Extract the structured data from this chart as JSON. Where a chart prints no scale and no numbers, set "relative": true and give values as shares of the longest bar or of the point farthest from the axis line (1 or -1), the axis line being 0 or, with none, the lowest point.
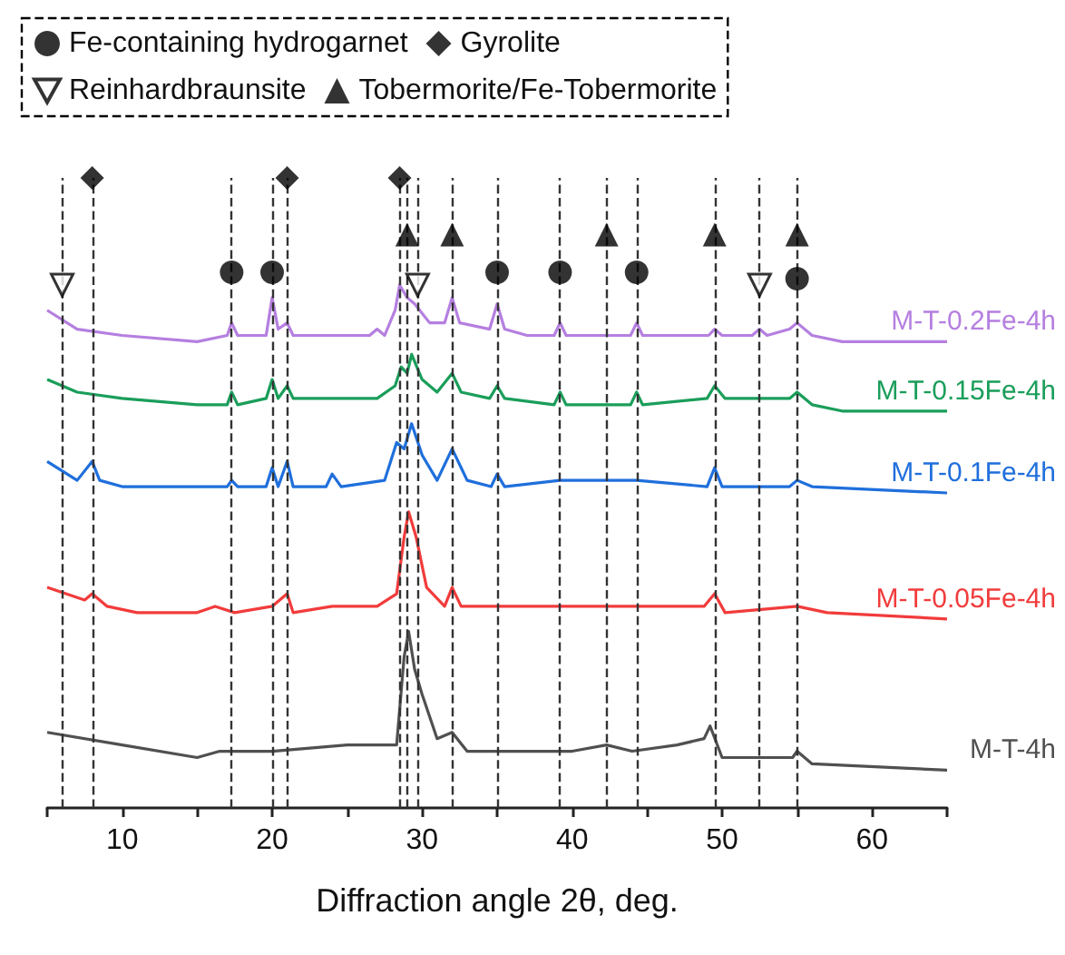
{
  "chart_data": {
    "type": "line",
    "relative": true,
    "xlabel": "Diffraction angle 2θ, deg.",
    "xlim": [
      5,
      65
    ],
    "xticks": [
      {
        "value": 5,
        "label": null
      },
      10,
      {
        "value": 15,
        "label": null
      },
      20,
      {
        "value": 25,
        "label": null
      },
      30,
      {
        "value": 35,
        "label": null
      },
      40,
      {
        "value": 45,
        "label": null
      },
      50,
      {
        "value": 55,
        "label": null
      },
      60,
      {
        "value": 65,
        "label": null
      }
    ],
    "grid": false,
    "legend": "top left",
    "line_style": "solid",
    "series": [
      {
        "name": "M-T-0.2Fe-4h",
        "color": "#b57fe0",
        "x": [
          5,
          7,
          10,
          15,
          17,
          17.3,
          17.7,
          19.6,
          20,
          20.4,
          21,
          21.4,
          24,
          26.5,
          27,
          27.5,
          28.2,
          28.5,
          29,
          29.5,
          30.5,
          31.5,
          32,
          32.5,
          34.5,
          35,
          35.5,
          37,
          38.8,
          39.2,
          39.6,
          43.9,
          44.3,
          44.7,
          49.1,
          49.5,
          50,
          52,
          52.5,
          53,
          54.5,
          55,
          56,
          58,
          65
        ],
        "values": [
          0.79,
          0.76,
          0.75,
          0.74,
          0.75,
          0.77,
          0.75,
          0.75,
          0.81,
          0.76,
          0.77,
          0.75,
          0.75,
          0.75,
          0.76,
          0.75,
          0.79,
          0.83,
          0.81,
          0.8,
          0.77,
          0.77,
          0.81,
          0.77,
          0.76,
          0.8,
          0.76,
          0.75,
          0.75,
          0.77,
          0.75,
          0.75,
          0.77,
          0.75,
          0.75,
          0.76,
          0.75,
          0.75,
          0.76,
          0.75,
          0.76,
          0.77,
          0.75,
          0.74,
          0.74
        ]
      },
      {
        "name": "M-T-0.15Fe-4h",
        "color": "#1a9e5a",
        "x": [
          5,
          7,
          10,
          15,
          17,
          17.3,
          17.7,
          19.6,
          20,
          20.4,
          21,
          21.4,
          24,
          27,
          28.2,
          28.6,
          29,
          29.3,
          30,
          31,
          32,
          32.6,
          34.5,
          35,
          35.5,
          38.8,
          39.2,
          39.6,
          43.9,
          44.3,
          44.7,
          49,
          49.5,
          50.2,
          52.5,
          54.5,
          55,
          56,
          58,
          65
        ],
        "values": [
          0.68,
          0.66,
          0.65,
          0.64,
          0.64,
          0.66,
          0.64,
          0.65,
          0.68,
          0.65,
          0.67,
          0.65,
          0.65,
          0.65,
          0.67,
          0.7,
          0.69,
          0.72,
          0.68,
          0.66,
          0.69,
          0.66,
          0.65,
          0.67,
          0.65,
          0.64,
          0.66,
          0.64,
          0.64,
          0.66,
          0.64,
          0.65,
          0.67,
          0.65,
          0.65,
          0.65,
          0.66,
          0.64,
          0.63,
          0.63
        ]
      },
      {
        "name": "M-T-0.1Fe-4h",
        "color": "#1f6fdc",
        "x": [
          5,
          7,
          8,
          8.5,
          10,
          15,
          17,
          17.3,
          17.7,
          19.6,
          20,
          20.4,
          21,
          21.4,
          23.6,
          24,
          24.6,
          27.5,
          28.3,
          28.8,
          29.3,
          30,
          31,
          32,
          33,
          34.6,
          35,
          35.5,
          39.2,
          44.3,
          49,
          49.5,
          50,
          54.5,
          55,
          56,
          65
        ],
        "values": [
          0.55,
          0.52,
          0.55,
          0.52,
          0.51,
          0.51,
          0.51,
          0.52,
          0.51,
          0.51,
          0.54,
          0.51,
          0.55,
          0.51,
          0.51,
          0.53,
          0.51,
          0.52,
          0.58,
          0.57,
          0.61,
          0.56,
          0.52,
          0.57,
          0.52,
          0.51,
          0.53,
          0.51,
          0.52,
          0.52,
          0.51,
          0.54,
          0.51,
          0.51,
          0.52,
          0.51,
          0.5
        ]
      },
      {
        "name": "M-T-0.05Fe-4h",
        "color": "#f23b3b",
        "x": [
          5,
          7.5,
          8,
          9,
          11,
          15,
          16.2,
          17.5,
          20,
          21,
          21.4,
          24,
          27,
          28.3,
          28.8,
          29.1,
          29.6,
          30.3,
          31.5,
          32,
          32.6,
          35,
          39.2,
          41.5,
          48.8,
          49.5,
          50.2,
          55,
          57,
          65
        ],
        "values": [
          0.35,
          0.33,
          0.34,
          0.32,
          0.31,
          0.31,
          0.32,
          0.31,
          0.32,
          0.34,
          0.31,
          0.32,
          0.32,
          0.34,
          0.43,
          0.47,
          0.43,
          0.35,
          0.32,
          0.35,
          0.32,
          0.32,
          0.32,
          0.32,
          0.32,
          0.34,
          0.31,
          0.32,
          0.31,
          0.3
        ]
      },
      {
        "name": "M-T-4h",
        "color": "#505050",
        "x": [
          5,
          10,
          15,
          16.5,
          20,
          25,
          28.3,
          28.8,
          29.1,
          29.5,
          30,
          31,
          32,
          33,
          35,
          40,
          42.3,
          44,
          47,
          48.8,
          49.2,
          50,
          54.7,
          55,
          56,
          65
        ],
        "values": [
          0.12,
          0.1,
          0.08,
          0.09,
          0.09,
          0.1,
          0.1,
          0.24,
          0.28,
          0.22,
          0.18,
          0.11,
          0.12,
          0.09,
          0.09,
          0.09,
          0.1,
          0.09,
          0.1,
          0.11,
          0.13,
          0.08,
          0.08,
          0.09,
          0.07,
          0.06
        ]
      },
      {
        "name": "Fe-containing hydrogarnet",
        "type": "scatter",
        "marker": "circle",
        "color": "#000000",
        "x": [
          17.3,
          20,
          35,
          39.2,
          44.3,
          55
        ],
        "values": [
          0.85,
          0.85,
          0.85,
          0.85,
          0.85,
          0.84
        ]
      },
      {
        "name": "Gyrolite",
        "type": "scatter",
        "marker": "diamond",
        "color": "#000000",
        "x": [
          8,
          21,
          28.5
        ],
        "values": [
          1,
          1,
          1
        ]
      },
      {
        "name": "Reinhardbraunsite",
        "type": "scatter",
        "marker": "triangle-down-open",
        "color": "#000000",
        "x": [
          6,
          29.7,
          52.5
        ],
        "values": [
          0.83,
          0.83,
          0.83
        ]
      },
      {
        "name": "Tobermorite/Fe-Tobermorite",
        "type": "scatter",
        "marker": "triangle",
        "color": "#000000",
        "x": [
          29,
          32,
          42.3,
          49.5,
          55
        ],
        "values": [
          0.91,
          0.91,
          0.91,
          0.91,
          0.91
        ]
      }
    ],
    "ref_lines": [
      {
        "axis": "x",
        "value": 6,
        "color": "#333333",
        "line_style": "dashed"
      },
      {
        "axis": "x",
        "value": 8,
        "color": "#333333",
        "line_style": "dashed"
      },
      {
        "axis": "x",
        "value": 17.3,
        "color": "#333333",
        "line_style": "dashed"
      },
      {
        "axis": "x",
        "value": 20,
        "color": "#333333",
        "line_style": "dashed"
      },
      {
        "axis": "x",
        "value": 21,
        "color": "#333333",
        "line_style": "dashed"
      },
      {
        "axis": "x",
        "value": 28.5,
        "color": "#333333",
        "line_style": "dashed"
      },
      {
        "axis": "x",
        "value": 29,
        "color": "#333333",
        "line_style": "dashed"
      },
      {
        "axis": "x",
        "value": 29.7,
        "color": "#333333",
        "line_style": "dashed"
      },
      {
        "axis": "x",
        "value": 32,
        "color": "#333333",
        "line_style": "dashed"
      },
      {
        "axis": "x",
        "value": 35,
        "color": "#333333",
        "line_style": "dashed"
      },
      {
        "axis": "x",
        "value": 39.2,
        "color": "#333333",
        "line_style": "dashed"
      },
      {
        "axis": "x",
        "value": 42.3,
        "color": "#333333",
        "line_style": "dashed"
      },
      {
        "axis": "x",
        "value": 44.3,
        "color": "#333333",
        "line_style": "dashed"
      },
      {
        "axis": "x",
        "value": 49.5,
        "color": "#333333",
        "line_style": "dashed"
      },
      {
        "axis": "x",
        "value": 52.5,
        "color": "#333333",
        "line_style": "dashed"
      },
      {
        "axis": "x",
        "value": 55,
        "color": "#333333",
        "line_style": "dashed"
      }
    ]
  }
}
